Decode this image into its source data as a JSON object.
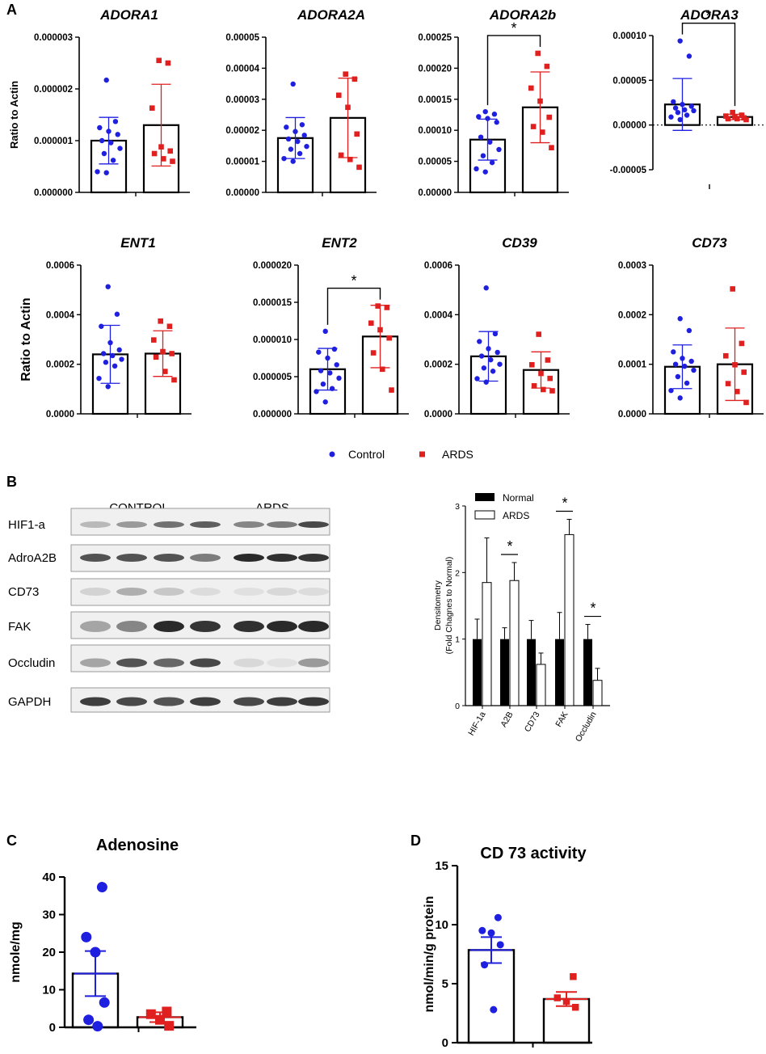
{
  "figure": {
    "panel_letters": [
      "A",
      "B",
      "C",
      "D"
    ],
    "legend_a": {
      "control": "Control",
      "ards": "ARDS"
    },
    "colors": {
      "control": "#1f1fe0",
      "ards": "#e01f1f",
      "black": "#000000"
    }
  },
  "chart_data": [
    {
      "id": "adora1",
      "type": "bar",
      "title": "ADORA1",
      "ylabel": "Ratio to Actin",
      "ylim": [
        0,
        3e-06
      ],
      "ticks": [
        "0.000000",
        "0.000001",
        "0.000002",
        "0.000003"
      ],
      "categories": [
        "Control",
        "ARDS"
      ],
      "means": [
        1e-06,
        1.3e-06
      ],
      "sd": [
        4.5e-07,
        7.9e-07
      ],
      "points": [
        [
          2.17e-06,
          1.37e-06,
          1.25e-06,
          1.18e-06,
          1.12e-06,
          1e-06,
          9.6e-07,
          8.5e-07,
          7.5e-07,
          6.2e-07,
          4e-07,
          3.8e-07
        ],
        [
          2.55e-06,
          2.5e-06,
          1.63e-06,
          8.8e-07,
          8e-07,
          7.5e-07,
          6.5e-07,
          6e-07
        ]
      ],
      "significance": ""
    },
    {
      "id": "adora2a",
      "type": "bar",
      "title": "ADORA2A",
      "ylabel": "",
      "ylim": [
        0,
        5e-05
      ],
      "ticks": [
        "0.00000",
        "0.00001",
        "0.00002",
        "0.00003",
        "0.00004",
        "0.00005"
      ],
      "categories": [
        "Control",
        "ARDS"
      ],
      "means": [
        1.75e-05,
        2.4e-05
      ],
      "sd": [
        6.6e-06,
        1.28e-05
      ],
      "points": [
        [
          3.49e-05,
          2.18e-05,
          2.1e-05,
          1.96e-05,
          1.84e-05,
          1.72e-05,
          1.64e-05,
          1.48e-05,
          1.39e-05,
          1.25e-05,
          1.09e-05,
          1e-05
        ],
        [
          3.81e-05,
          3.65e-05,
          3.13e-05,
          2.74e-05,
          1.88e-05,
          1.2e-05,
          1.06e-05,
          8.1e-06
        ]
      ],
      "significance": ""
    },
    {
      "id": "adora2b",
      "type": "bar",
      "title": "ADORA2b",
      "ylabel": "",
      "ylim": [
        0,
        0.00025
      ],
      "ticks": [
        "0.00000",
        "0.00005",
        "0.00010",
        "0.00015",
        "0.00020",
        "0.00025"
      ],
      "categories": [
        "Control",
        "ARDS"
      ],
      "means": [
        8.5e-05,
        0.000137
      ],
      "sd": [
        3.3e-05,
        5.7e-05
      ],
      "points": [
        [
          0.00013,
          0.000126,
          0.000122,
          0.000119,
          0.000113,
          8.9e-05,
          8.1e-05,
          6.9e-05,
          5.9e-05,
          4.8e-05,
          3.8e-05,
          3.3e-05
        ],
        [
          0.000224,
          0.000203,
          0.000168,
          0.000147,
          0.000121,
          0.000106,
          9.7e-05,
          7.2e-05
        ]
      ],
      "significance": "*"
    },
    {
      "id": "adora3",
      "type": "bar",
      "title": "ADORA3",
      "ylabel": "",
      "ylim": [
        -5e-05,
        0.0001
      ],
      "ticks": [
        "-0.00005",
        "0.00000",
        "0.00005",
        "0.00010"
      ],
      "categories": [
        "Control",
        "ARDS"
      ],
      "means": [
        2.3e-05,
        9e-06
      ],
      "sd": [
        2.9e-05,
        3e-06
      ],
      "points": [
        [
          9.4e-05,
          7.7e-05,
          2.6e-05,
          2.3e-05,
          2.1e-05,
          1.9e-05,
          1.7e-05,
          1.6e-05,
          1.4e-05,
          1.1e-05,
          9e-06,
          6e-06
        ],
        [
          1.4e-05,
          1.1e-05,
          1e-05,
          9e-06,
          8e-06,
          7e-06,
          7e-06,
          6e-06
        ]
      ],
      "significance": "*"
    },
    {
      "id": "ent1",
      "type": "bar",
      "title": "ENT1",
      "ylabel": "Ratio to Actin",
      "ylim": [
        0,
        0.0006
      ],
      "ticks": [
        "0.0000",
        "0.0002",
        "0.0004",
        "0.0006"
      ],
      "categories": [
        "Control",
        "ARDS"
      ],
      "means": [
        0.00024,
        0.000243
      ],
      "sd": [
        0.000117,
        9.2e-05
      ],
      "points": [
        [
          0.000513,
          0.000402,
          0.000353,
          0.000287,
          0.000258,
          0.000243,
          0.000235,
          0.00022,
          0.000208,
          0.000193,
          0.000143,
          0.00011
        ],
        [
          0.000374,
          0.000353,
          0.000298,
          0.000251,
          0.000243,
          0.000229,
          0.000171,
          0.000137
        ]
      ],
      "significance": ""
    },
    {
      "id": "ent2",
      "type": "bar",
      "title": "ENT2",
      "ylabel": "",
      "ylim": [
        0,
        2e-05
      ],
      "ticks": [
        "0.000000",
        "0.000005",
        "0.000010",
        "0.000015",
        "0.000020"
      ],
      "categories": [
        "Control",
        "ARDS"
      ],
      "means": [
        6e-06,
        1.04e-05
      ],
      "sd": [
        2.8e-06,
        4.2e-06
      ],
      "points": [
        [
          1.11e-05,
          8.7e-06,
          8.3e-06,
          7.5e-06,
          6.6e-06,
          5.8e-06,
          5.5e-06,
          4.8e-06,
          4e-06,
          3.4e-06,
          3e-06,
          1.6e-06
        ],
        [
          1.45e-05,
          1.43e-05,
          1.22e-05,
          1.13e-05,
          1.02e-05,
          8.2e-06,
          6e-06,
          3.2e-06
        ]
      ],
      "significance": "*"
    },
    {
      "id": "cd39",
      "type": "bar",
      "title": "CD39",
      "ylabel": "",
      "ylim": [
        0,
        0.0006
      ],
      "ticks": [
        "0.0000",
        "0.0002",
        "0.0004",
        "0.0006"
      ],
      "categories": [
        "Control",
        "ARDS"
      ],
      "means": [
        0.000232,
        0.000177
      ],
      "sd": [
        0.0001,
        7.3e-05
      ],
      "points": [
        [
          0.000508,
          0.000323,
          0.000292,
          0.000263,
          0.000248,
          0.000233,
          0.000218,
          0.0002,
          0.000185,
          0.000172,
          0.000142,
          0.000128
        ],
        [
          0.000321,
          0.000217,
          0.000198,
          0.000163,
          0.000143,
          0.000113,
          9.8e-05,
          9.3e-05
        ]
      ],
      "significance": ""
    },
    {
      "id": "cd73",
      "type": "bar",
      "title": "CD73",
      "ylabel": "",
      "ylim": [
        0,
        0.0003
      ],
      "ticks": [
        "0.0000",
        "0.0001",
        "0.0002",
        "0.0003"
      ],
      "categories": [
        "Control",
        "ARDS"
      ],
      "means": [
        9.5e-05,
        0.0001
      ],
      "sd": [
        4.4e-05,
        7.3e-05
      ],
      "points": [
        [
          0.000192,
          0.000168,
          0.000125,
          0.000112,
          0.000106,
          0.0001,
          9.6e-05,
          8.8e-05,
          7.5e-05,
          6.2e-05,
          4.7e-05,
          3.2e-05
        ],
        [
          0.000252,
          0.000142,
          0.000117,
          9.9e-05,
          8.4e-05,
          6.1e-05,
          4.5e-05,
          2.3e-05
        ]
      ],
      "significance": ""
    },
    {
      "id": "densitometry",
      "type": "bar",
      "title": "",
      "ylabel": [
        "Densitometry",
        "(Fold Chagnes to Normal)"
      ],
      "ylim": [
        0,
        3
      ],
      "ticks": [
        "0",
        "1",
        "2",
        "3"
      ],
      "categories": [
        "HIF-1a",
        "A2B",
        "CD73",
        "FAK",
        "Occludin"
      ],
      "series": [
        {
          "name": "Normal",
          "values": [
            1.0,
            1.0,
            1.0,
            1.0,
            1.0
          ],
          "err": [
            0.3,
            0.17,
            0.28,
            0.4,
            0.22
          ]
        },
        {
          "name": "ARDS",
          "values": [
            1.85,
            1.88,
            0.62,
            2.57,
            0.38
          ],
          "err": [
            0.67,
            0.27,
            0.17,
            0.23,
            0.18
          ]
        }
      ],
      "significance": [
        "",
        "*",
        "",
        "*",
        "*"
      ]
    },
    {
      "id": "adenosine",
      "type": "bar",
      "title": "Adenosine",
      "ylabel": "nmole/mg",
      "ylim": [
        0,
        40
      ],
      "ticks": [
        "0",
        "10",
        "20",
        "30",
        "40"
      ],
      "categories": [
        "Control",
        "ARDS"
      ],
      "means": [
        14.3,
        2.7
      ],
      "sem": [
        6.0,
        1.3
      ],
      "points": [
        [
          37.3,
          24.0,
          20.0,
          6.6,
          2.0,
          0.3
        ],
        [
          4.2,
          3.5,
          2.0,
          0.4
        ]
      ]
    },
    {
      "id": "cd73_activity",
      "type": "bar",
      "title": "CD 73 activity",
      "ylabel": "nmol/min/g protein",
      "ylim": [
        0,
        15
      ],
      "ticks": [
        "0",
        "5",
        "10",
        "15"
      ],
      "categories": [
        "Control",
        "ARDS"
      ],
      "means": [
        7.85,
        3.7
      ],
      "sem": [
        1.1,
        0.6
      ],
      "points": [
        [
          10.6,
          9.5,
          9.3,
          8.3,
          6.6,
          2.8
        ],
        [
          5.6,
          3.8,
          3.5,
          3.0
        ]
      ]
    }
  ],
  "western_blot": {
    "groups": [
      "CONTROL",
      "ARDS"
    ],
    "rows": [
      {
        "label": "HIF1-a",
        "intensity": [
          0.25,
          0.4,
          0.6,
          0.7,
          0.5,
          0.55,
          0.8
        ],
        "band_height": 6
      },
      {
        "label": "AdroA2B",
        "intensity": [
          0.75,
          0.75,
          0.75,
          0.55,
          0.95,
          0.92,
          0.9
        ],
        "band_height": 8
      },
      {
        "label": "CD73",
        "intensity": [
          0.12,
          0.3,
          0.18,
          0.08,
          0.06,
          0.1,
          0.08
        ],
        "band_height": 8
      },
      {
        "label": "FAK",
        "intensity": [
          0.35,
          0.5,
          0.95,
          0.9,
          0.92,
          0.95,
          0.95
        ],
        "band_height": 12
      },
      {
        "label": "Occludin",
        "intensity": [
          0.35,
          0.75,
          0.65,
          0.8,
          0.1,
          0.05,
          0.4
        ],
        "band_height": 9
      },
      {
        "label": "GAPDH",
        "intensity": [
          0.85,
          0.8,
          0.75,
          0.85,
          0.8,
          0.85,
          0.88
        ],
        "band_height": 9
      }
    ]
  }
}
